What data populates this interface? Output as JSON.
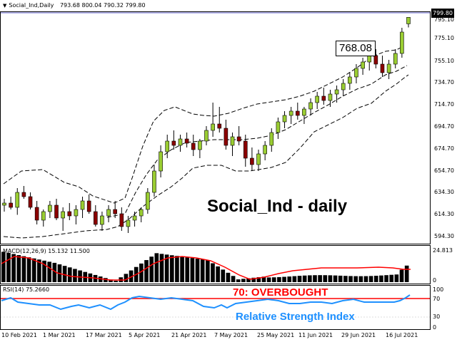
{
  "header": {
    "symbol_label": "Social_Ind,Daily",
    "ohlc": "793.68 800.04 790.32 799.80"
  },
  "main_chart": {
    "current_price_tag": "799.80",
    "callout_price": "768.08",
    "overlay_title": "Social_Ind - daily",
    "price_axis": [
      "795.10",
      "775.10",
      "755.10",
      "734.70",
      "714.70",
      "694.70",
      "674.70",
      "654.70",
      "634.30",
      "614.30",
      "594.30"
    ]
  },
  "macd_panel": {
    "label": "MACD(12,26,9) 15.132 11.500",
    "axis_top": "24.813",
    "axis_bottom": "0"
  },
  "rsi_panel": {
    "label": "RSI(14) 75.2660",
    "overbought_text": "70: OVERBOUGHT",
    "subtitle": "Relative Strength Index",
    "axis": [
      "100",
      "70",
      "30",
      "0"
    ]
  },
  "date_axis": [
    "10 Feb 2021",
    "1 Mar 2021",
    "17 Mar 2021",
    "5 Apr 2021",
    "21 Apr 2021",
    "7 May 2021",
    "25 May 2021",
    "11 Jun 2021",
    "29 Jun 2021",
    "16 Jul 2021"
  ],
  "colors": {
    "bull_candle": "#9acd32",
    "bear_candle": "#8b0000",
    "macd_signal": "#ff0000",
    "rsi_line": "#1e90ff",
    "overbought_line": "#ff0000",
    "overbought_text": "#ff0000",
    "rsi_text": "#1e90ff"
  },
  "chart_data": {
    "type": "candlestick",
    "price_range": [
      588,
      804
    ],
    "candles": [
      [
        624,
        630,
        618,
        626
      ],
      [
        626,
        632,
        620,
        622
      ],
      [
        622,
        640,
        615,
        636
      ],
      [
        636,
        642,
        630,
        632
      ],
      [
        632,
        636,
        620,
        622
      ],
      [
        622,
        628,
        606,
        610
      ],
      [
        610,
        620,
        604,
        618
      ],
      [
        618,
        628,
        612,
        624
      ],
      [
        624,
        630,
        610,
        612
      ],
      [
        612,
        622,
        600,
        618
      ],
      [
        618,
        626,
        610,
        614
      ],
      [
        614,
        624,
        606,
        620
      ],
      [
        620,
        632,
        612,
        628
      ],
      [
        628,
        634,
        616,
        618
      ],
      [
        618,
        624,
        604,
        606
      ],
      [
        606,
        618,
        600,
        614
      ],
      [
        614,
        624,
        608,
        620
      ],
      [
        620,
        628,
        612,
        616
      ],
      [
        616,
        622,
        600,
        604
      ],
      [
        604,
        614,
        598,
        610
      ],
      [
        610,
        618,
        604,
        614
      ],
      [
        614,
        622,
        608,
        620
      ],
      [
        620,
        640,
        616,
        636
      ],
      [
        636,
        662,
        632,
        656
      ],
      [
        656,
        680,
        650,
        674
      ],
      [
        674,
        690,
        668,
        684
      ],
      [
        684,
        694,
        676,
        680
      ],
      [
        680,
        690,
        674,
        686
      ],
      [
        686,
        692,
        678,
        682
      ],
      [
        682,
        690,
        670,
        676
      ],
      [
        676,
        686,
        668,
        684
      ],
      [
        684,
        698,
        680,
        694
      ],
      [
        694,
        720,
        688,
        700
      ],
      [
        700,
        716,
        692,
        696
      ],
      [
        696,
        704,
        676,
        680
      ],
      [
        680,
        692,
        670,
        688
      ],
      [
        688,
        698,
        680,
        684
      ],
      [
        684,
        690,
        660,
        668
      ],
      [
        668,
        678,
        656,
        662
      ],
      [
        662,
        676,
        656,
        672
      ],
      [
        672,
        684,
        666,
        680
      ],
      [
        680,
        696,
        674,
        692
      ],
      [
        692,
        706,
        686,
        702
      ],
      [
        702,
        712,
        696,
        708
      ],
      [
        708,
        716,
        700,
        712
      ],
      [
        712,
        720,
        704,
        708
      ],
      [
        708,
        716,
        700,
        714
      ],
      [
        714,
        724,
        708,
        720
      ],
      [
        720,
        730,
        714,
        726
      ],
      [
        726,
        734,
        718,
        722
      ],
      [
        722,
        732,
        716,
        728
      ],
      [
        728,
        736,
        720,
        732
      ],
      [
        732,
        742,
        726,
        738
      ],
      [
        738,
        748,
        732,
        744
      ],
      [
        744,
        756,
        738,
        752
      ],
      [
        752,
        762,
        746,
        758
      ],
      [
        758,
        768,
        750,
        764
      ],
      [
        764,
        770,
        752,
        756
      ],
      [
        756,
        764,
        744,
        748
      ],
      [
        748,
        760,
        742,
        756
      ],
      [
        756,
        770,
        752,
        766
      ],
      [
        766,
        790,
        762,
        786
      ],
      [
        793.68,
        800.04,
        790.32,
        799.8
      ]
    ],
    "macd_range": [
      0,
      24.813
    ],
    "rsi_levels": {
      "overbought": 70,
      "oversold": 30
    }
  }
}
